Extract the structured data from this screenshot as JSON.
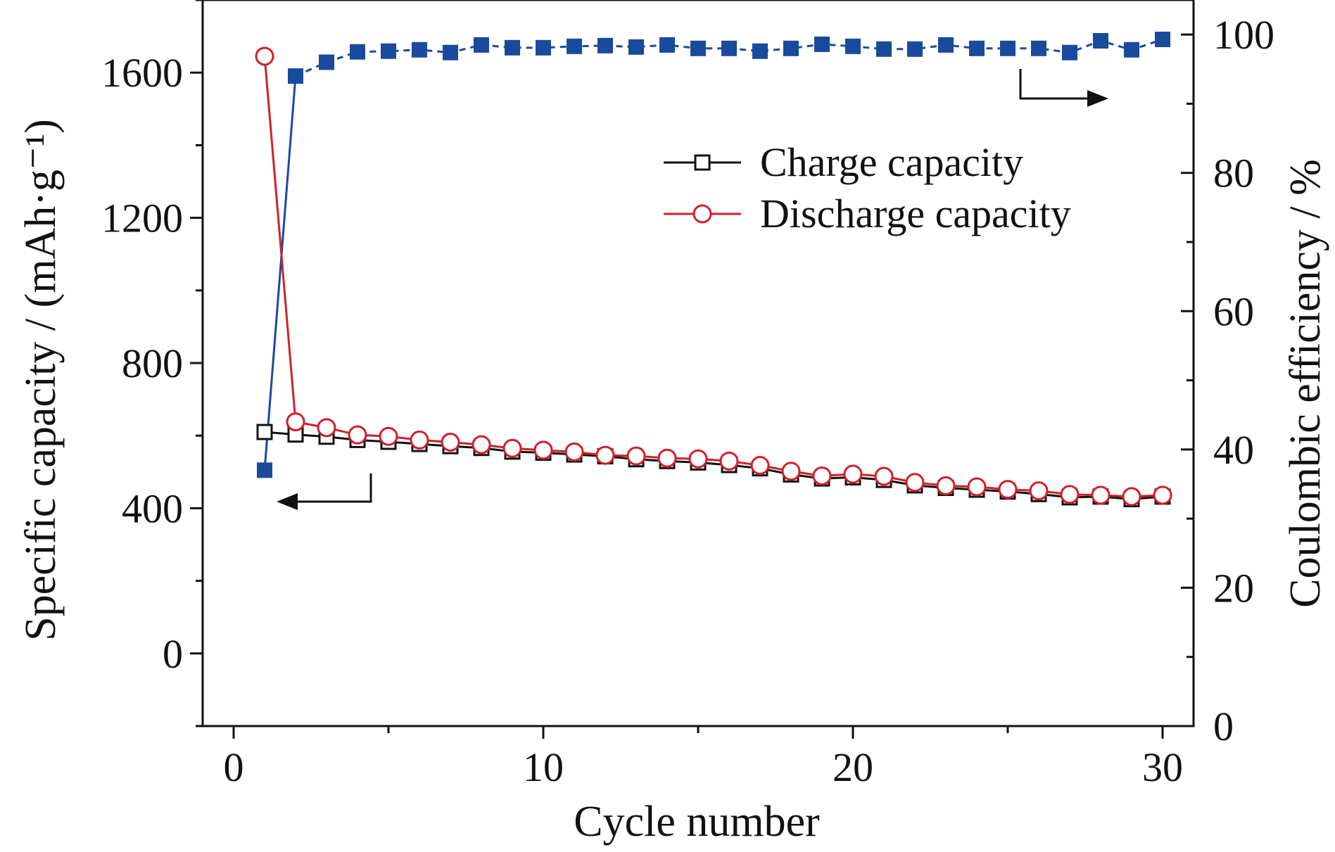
{
  "chart_data": {
    "type": "line",
    "title": "",
    "xlabel": "Cycle number",
    "ylabel_left": "Specific capacity / (mAh·g⁻¹)",
    "ylabel_right": "Coulombic efficiency / %",
    "xlim": [
      -1,
      31
    ],
    "ylim_left": [
      -200,
      1800
    ],
    "ylim_right": [
      0,
      105
    ],
    "x_ticks": [
      0,
      10,
      20,
      30
    ],
    "y_left_ticks": [
      0,
      400,
      800,
      1200,
      1600
    ],
    "y_right_ticks": [
      0,
      20,
      40,
      60,
      80,
      100
    ],
    "grid": false,
    "legend_position": "top-right",
    "x": [
      1,
      2,
      3,
      4,
      5,
      6,
      7,
      8,
      9,
      10,
      11,
      12,
      13,
      14,
      15,
      16,
      17,
      18,
      19,
      20,
      21,
      22,
      23,
      24,
      25,
      26,
      27,
      28,
      29,
      30
    ],
    "series": [
      {
        "name": "Charge capacity",
        "axis": "left",
        "color": "#111111",
        "marker": "open-square",
        "values": [
          610,
          603,
          597,
          588,
          583,
          577,
          571,
          566,
          556,
          553,
          548,
          543,
          535,
          530,
          526,
          519,
          510,
          493,
          482,
          485,
          478,
          463,
          456,
          451,
          446,
          439,
          430,
          432,
          425,
          432
        ]
      },
      {
        "name": "Discharge capacity",
        "axis": "left",
        "color": "#d0202a",
        "marker": "open-circle",
        "values": [
          1645,
          638,
          622,
          602,
          598,
          588,
          582,
          575,
          565,
          560,
          555,
          546,
          544,
          538,
          536,
          530,
          518,
          502,
          489,
          494,
          488,
          471,
          462,
          459,
          452,
          448,
          438,
          436,
          432,
          436
        ]
      },
      {
        "name": "",
        "axis": "right",
        "color": "#1a4a9c",
        "marker": "filled-square",
        "values": [
          37,
          94,
          96,
          97.5,
          97.6,
          97.8,
          97.4,
          98.5,
          98.1,
          98.1,
          98.3,
          98.4,
          98.2,
          98.5,
          98.0,
          98.0,
          97.6,
          98.0,
          98.6,
          98.3,
          97.9,
          97.9,
          98.5,
          98.0,
          98.0,
          98.0,
          97.4,
          99.1,
          97.8,
          99.3
        ]
      }
    ]
  }
}
